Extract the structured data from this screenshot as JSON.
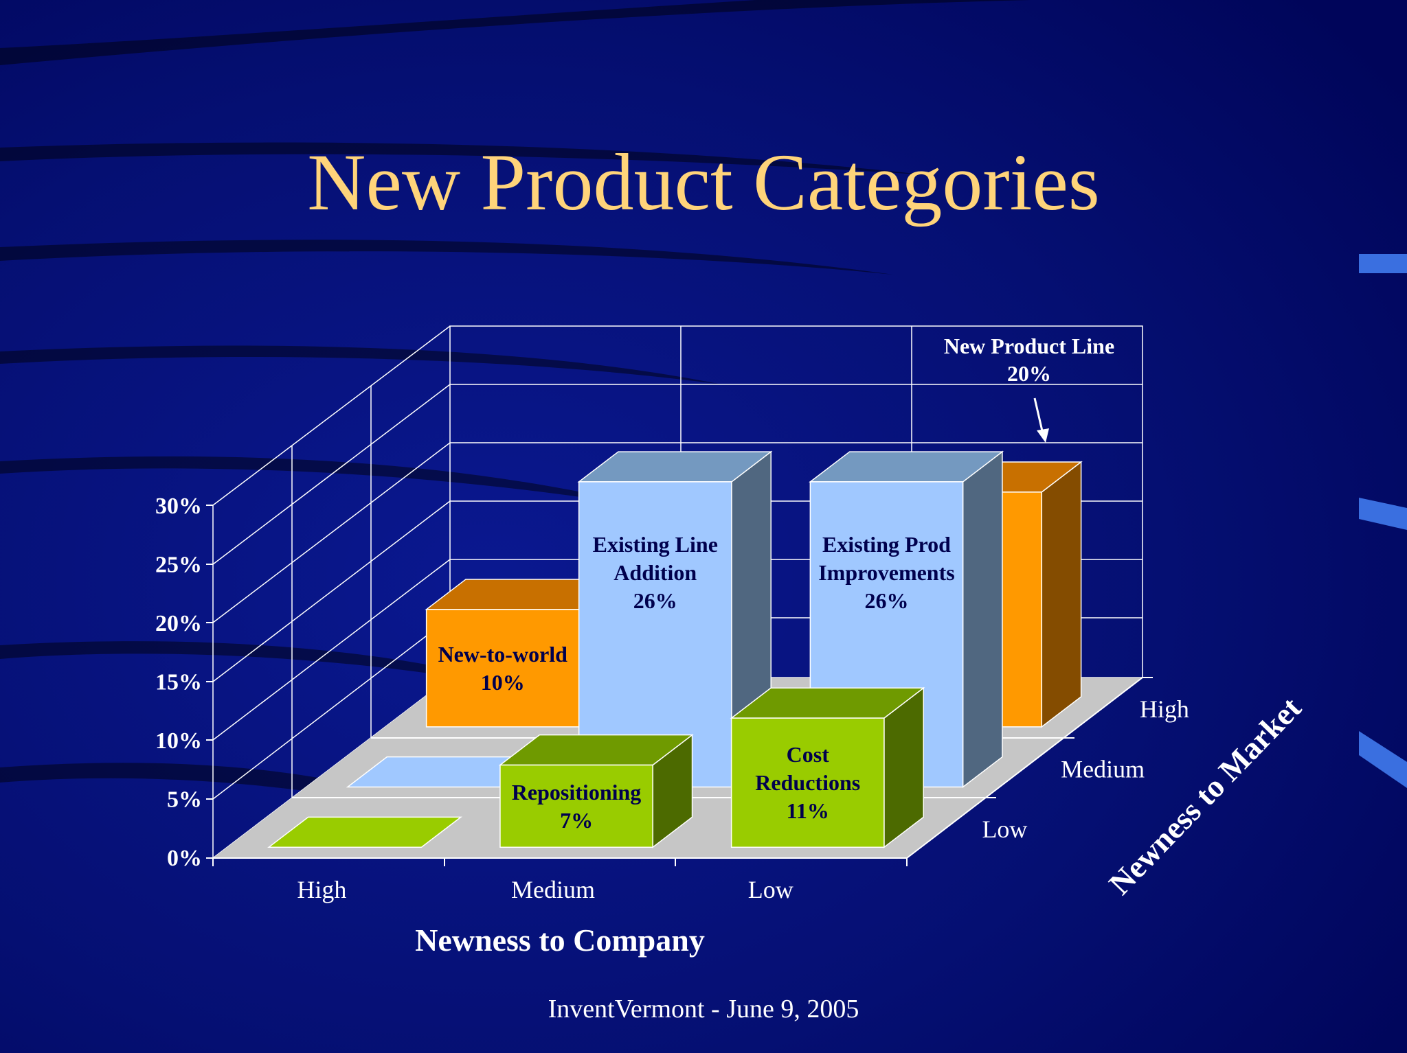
{
  "slide": {
    "title": "New Product Categories",
    "footer": "InventVermont - June 9, 2005"
  },
  "colors": {
    "background": "#00096a",
    "title": "#ffd47a",
    "orange": "#ff9900",
    "light_blue": "#a0c8ff",
    "green": "#99cc00",
    "floor": "#c0c0c0",
    "label_text": "#00004d",
    "axis_text": "#ffffff"
  },
  "chart_data": {
    "type": "bar",
    "variant": "3d-column",
    "xlabel": "Newness to Company",
    "zlabel": "Newness to Market",
    "x_categories": [
      "High",
      "Medium",
      "Low"
    ],
    "z_categories": [
      "Low",
      "Medium",
      "High"
    ],
    "yticks": [
      "0%",
      "5%",
      "10%",
      "15%",
      "20%",
      "25%",
      "30%"
    ],
    "ylim": [
      0,
      30
    ],
    "grid": true,
    "bars": [
      {
        "company": "High",
        "market": "High",
        "label": [
          "New-to-world",
          "10%"
        ],
        "value": 10,
        "color": "orange"
      },
      {
        "company": "Medium",
        "market": "Medium",
        "label": [
          "Existing Line",
          "Addition",
          "26%"
        ],
        "value": 26,
        "color": "light_blue"
      },
      {
        "company": "Low",
        "market": "Medium",
        "label": [
          "Existing Prod",
          "Improvements",
          "26%"
        ],
        "value": 26,
        "color": "light_blue"
      },
      {
        "company": "Low",
        "market": "High",
        "label": [],
        "value": 20,
        "color": "orange"
      },
      {
        "company": "Medium",
        "market": "Low",
        "label": [
          "Repositioning",
          "7%"
        ],
        "value": 7,
        "color": "green"
      },
      {
        "company": "Low",
        "market": "Low",
        "label": [
          "Cost",
          "Reductions",
          "11%"
        ],
        "value": 11,
        "color": "green"
      },
      {
        "company": "High",
        "market": "Medium",
        "label": [],
        "value": 0,
        "color": "light_blue"
      },
      {
        "company": "High",
        "market": "Low",
        "label": [],
        "value": 0,
        "color": "green"
      }
    ],
    "callout": {
      "lines": [
        "New Product Line",
        "20%"
      ],
      "target": "Low/High"
    }
  }
}
